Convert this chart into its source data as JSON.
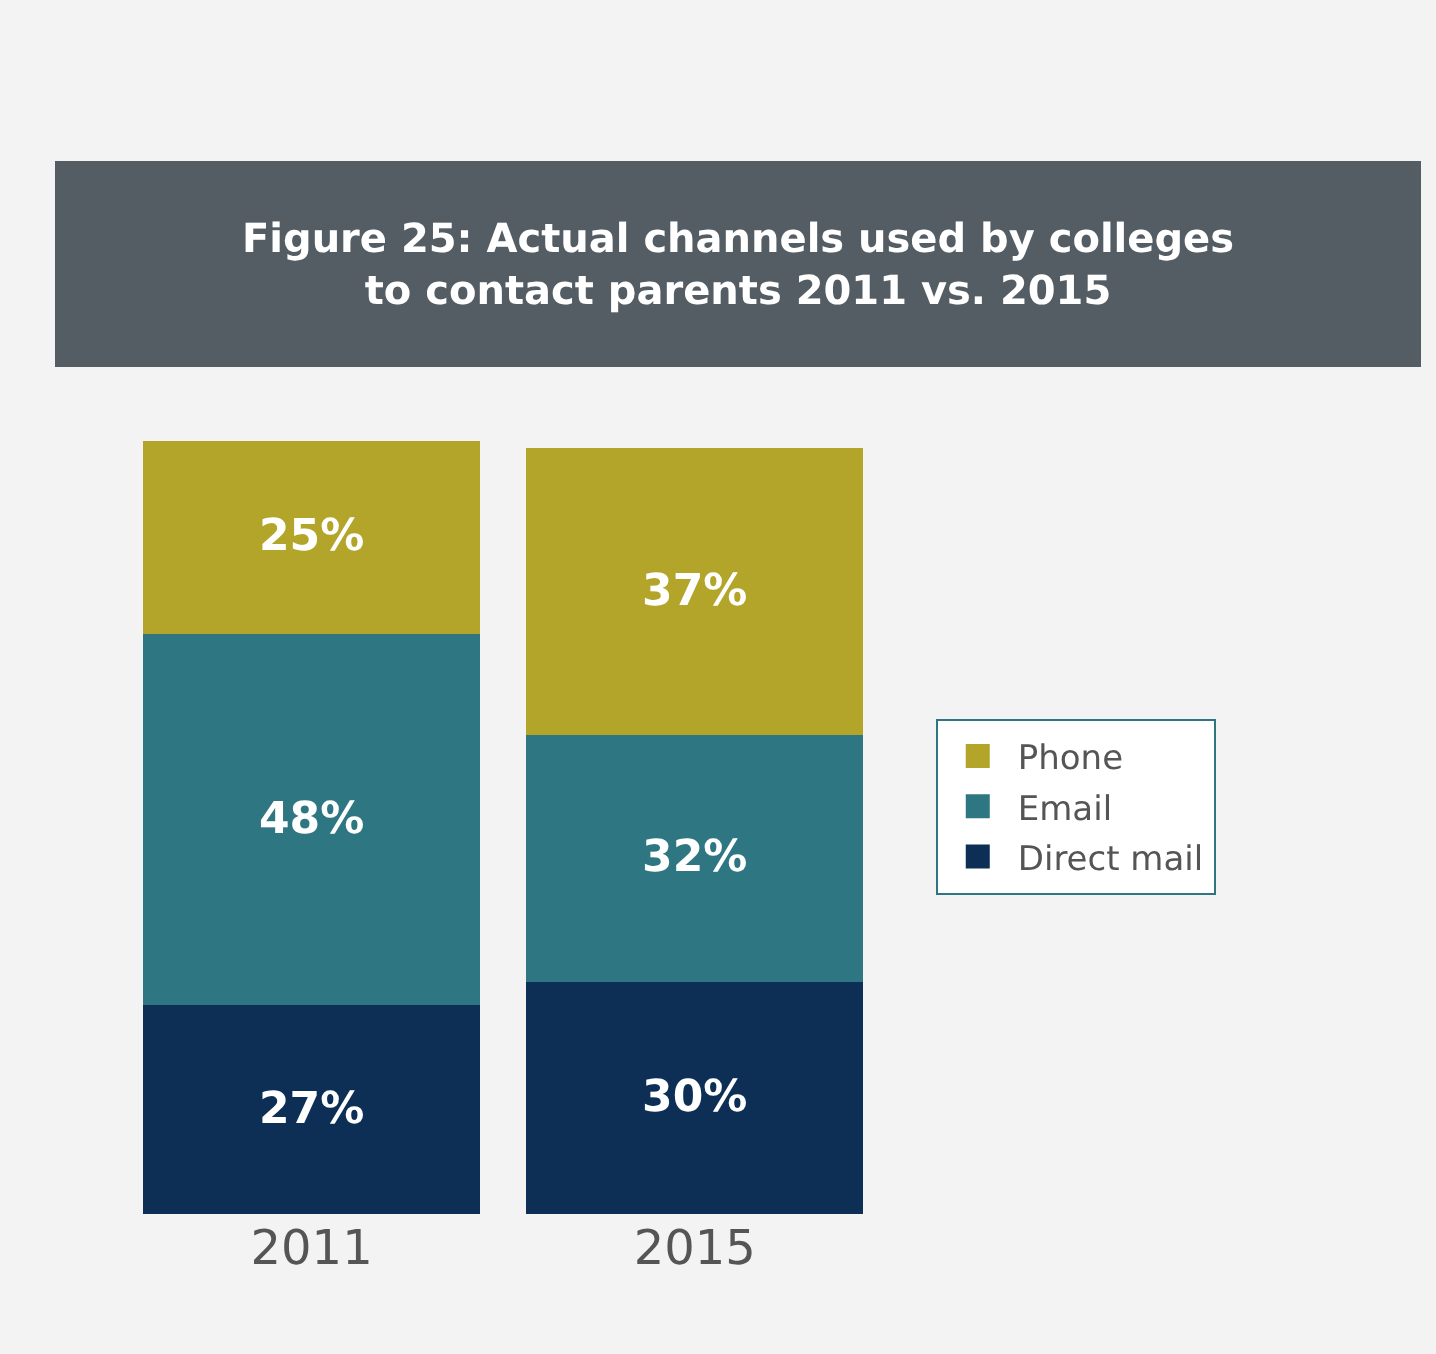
{
  "chart_data": {
    "type": "bar",
    "title": "Figure 25: Actual channels used by colleges\nto contact parents 2011 vs. 2015",
    "categories": [
      "2011",
      "2015"
    ],
    "stacked": true,
    "legend": "right",
    "series": [
      {
        "name": "Direct mail",
        "color": "#0e2f55",
        "values": [
          27,
          30
        ],
        "value_labels": [
          "27%",
          "30%"
        ]
      },
      {
        "name": "Email",
        "color": "#2e7782",
        "values": [
          48,
          32
        ],
        "value_labels": [
          "48%",
          "32%"
        ]
      },
      {
        "name": "Phone",
        "color": "#b2a52a",
        "values": [
          25,
          37
        ],
        "value_labels": [
          "25%",
          "37%"
        ]
      }
    ]
  }
}
